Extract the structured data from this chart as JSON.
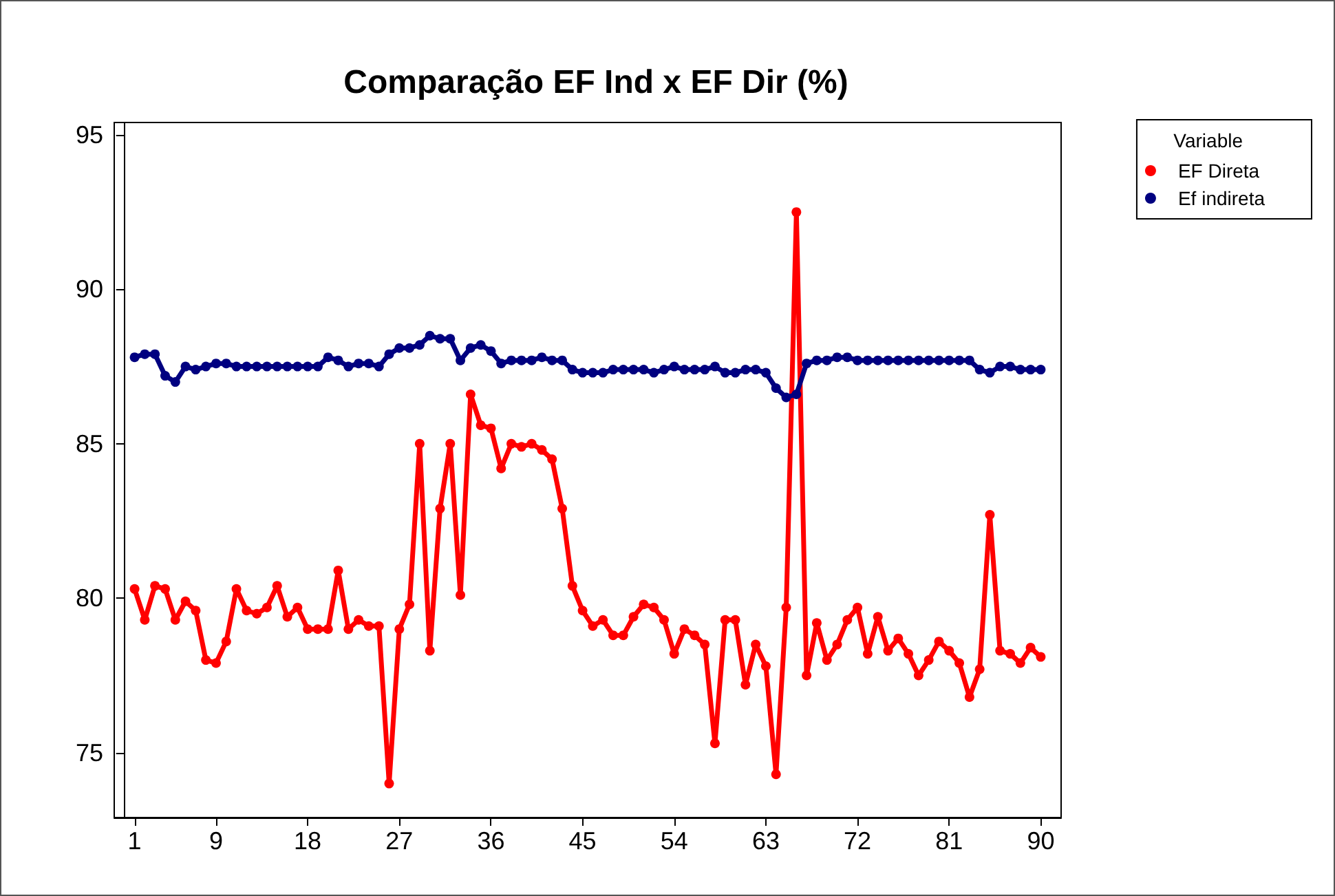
{
  "chart_data": {
    "type": "line",
    "title": "Comparação EF Ind x EF Dir (%)",
    "legend_title": "Variable",
    "legend": "right",
    "marker": "circle",
    "line_style": "solid",
    "grid": false,
    "x": [
      1,
      2,
      3,
      4,
      5,
      6,
      7,
      8,
      9,
      10,
      11,
      12,
      13,
      14,
      15,
      16,
      17,
      18,
      19,
      20,
      21,
      22,
      23,
      24,
      25,
      26,
      27,
      28,
      29,
      30,
      31,
      32,
      33,
      34,
      35,
      36,
      37,
      38,
      39,
      40,
      41,
      42,
      43,
      44,
      45,
      46,
      47,
      48,
      49,
      50,
      51,
      52,
      53,
      54,
      55,
      56,
      57,
      58,
      59,
      60,
      61,
      62,
      63,
      64,
      65,
      66,
      67,
      68,
      69,
      70,
      71,
      72,
      73,
      74,
      75,
      76,
      77,
      78,
      79,
      80,
      81,
      82,
      83,
      84,
      85,
      86,
      87,
      88,
      89,
      90
    ],
    "xlim": [
      -1,
      92
    ],
    "xticks": [
      1,
      9,
      18,
      27,
      36,
      45,
      54,
      63,
      72,
      81,
      90
    ],
    "ylim": [
      72.9,
      95.4
    ],
    "yticks": [
      75,
      80,
      85,
      90,
      95
    ],
    "series": [
      {
        "name": "EF Direta",
        "color": "#ff0000",
        "values": [
          80.3,
          79.3,
          80.4,
          80.3,
          79.3,
          79.9,
          79.6,
          78.0,
          77.9,
          78.6,
          80.3,
          79.6,
          79.5,
          79.7,
          80.4,
          79.4,
          79.7,
          79.0,
          79.0,
          79.0,
          80.9,
          79.0,
          79.3,
          79.1,
          79.1,
          74.0,
          79.0,
          79.8,
          85.0,
          78.3,
          82.9,
          85.0,
          80.1,
          86.6,
          85.6,
          85.5,
          84.2,
          85.0,
          84.9,
          85.0,
          84.8,
          84.5,
          82.9,
          80.4,
          79.6,
          79.1,
          79.3,
          78.8,
          78.8,
          79.4,
          79.8,
          79.7,
          79.3,
          78.2,
          79.0,
          78.8,
          78.5,
          75.3,
          79.3,
          79.3,
          77.2,
          78.5,
          77.8,
          74.3,
          79.7,
          92.5,
          77.5,
          79.2,
          78.0,
          78.5,
          79.3,
          79.7,
          78.2,
          79.4,
          78.3,
          78.7,
          78.2,
          77.5,
          78.0,
          78.6,
          78.3,
          77.9,
          76.8,
          77.7,
          82.7,
          78.3,
          78.2,
          77.9,
          78.4,
          78.1
        ]
      },
      {
        "name": "Ef indireta",
        "color": "#000080",
        "values": [
          87.8,
          87.9,
          87.9,
          87.2,
          87.0,
          87.5,
          87.4,
          87.5,
          87.6,
          87.6,
          87.5,
          87.5,
          87.5,
          87.5,
          87.5,
          87.5,
          87.5,
          87.5,
          87.5,
          87.8,
          87.7,
          87.5,
          87.6,
          87.6,
          87.5,
          87.9,
          88.1,
          88.1,
          88.2,
          88.5,
          88.4,
          88.4,
          87.7,
          88.1,
          88.2,
          88.0,
          87.6,
          87.7,
          87.7,
          87.7,
          87.8,
          87.7,
          87.7,
          87.4,
          87.3,
          87.3,
          87.3,
          87.4,
          87.4,
          87.4,
          87.4,
          87.3,
          87.4,
          87.5,
          87.4,
          87.4,
          87.4,
          87.5,
          87.3,
          87.3,
          87.4,
          87.4,
          87.3,
          86.8,
          86.5,
          86.6,
          87.6,
          87.7,
          87.7,
          87.8,
          87.8,
          87.7,
          87.7,
          87.7,
          87.7,
          87.7,
          87.7,
          87.7,
          87.7,
          87.7,
          87.7,
          87.7,
          87.7,
          87.4,
          87.3,
          87.5,
          87.5,
          87.4,
          87.4,
          87.4
        ]
      }
    ]
  }
}
